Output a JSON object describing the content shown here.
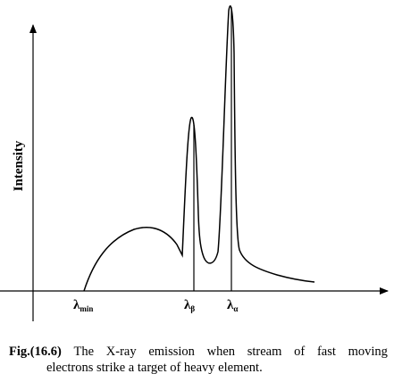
{
  "diagram": {
    "y_axis_label": "Intensity",
    "markers": [
      {
        "symbol": "λ",
        "subscript": "min"
      },
      {
        "symbol": "λ",
        "subscript": "β"
      },
      {
        "symbol": "λ",
        "subscript": "α"
      }
    ]
  },
  "caption": {
    "figure_number": "Fig.(16.6)",
    "line1_words": [
      "The",
      "X-ray",
      "emission",
      "when",
      "stream",
      "of",
      "fast",
      "moving"
    ],
    "line2": "electrons strike a target of heavy element."
  },
  "colors": {
    "ink": "#000000",
    "background": "#ffffff"
  }
}
